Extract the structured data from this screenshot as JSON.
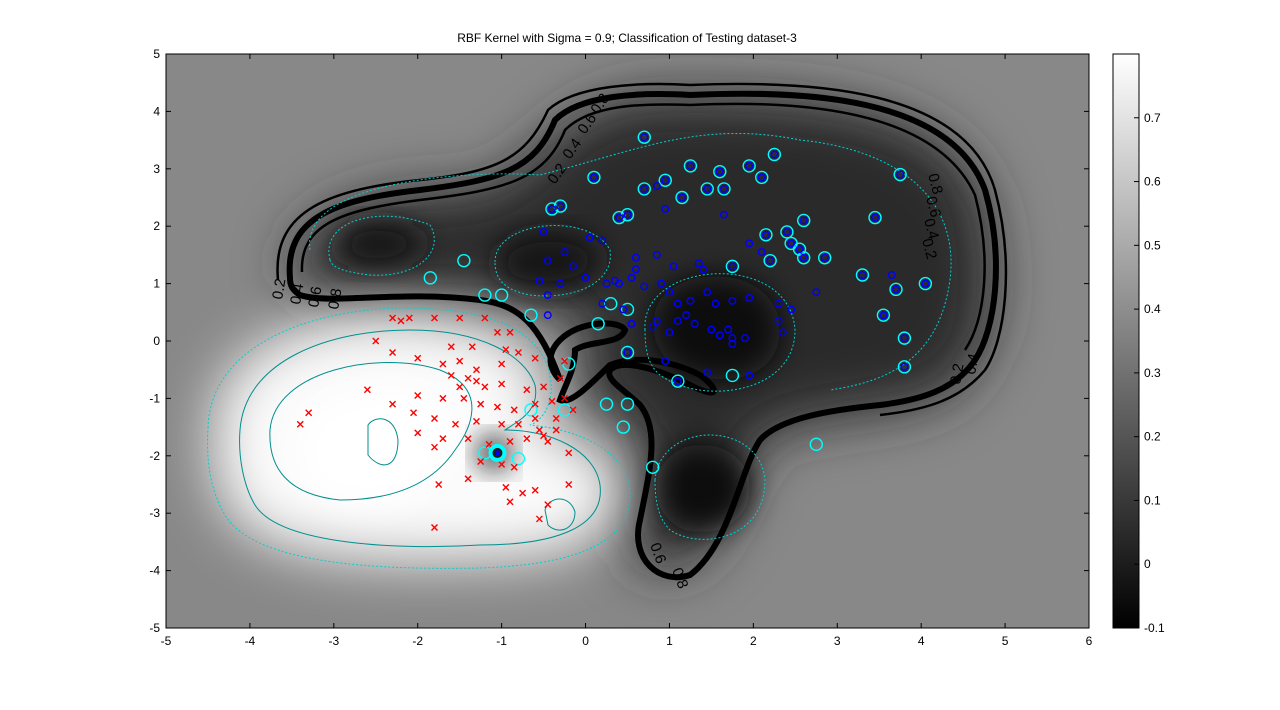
{
  "chart_data": {
    "type": "scatter",
    "title": "RBF Kernel with Sigma = 0.9; Classification of Testing dataset-3",
    "xlim": [
      -5,
      6
    ],
    "ylim": [
      -5,
      5
    ],
    "xticks": [
      "-5",
      "-4",
      "-3",
      "-2",
      "-1",
      "0",
      "1",
      "2",
      "3",
      "4",
      "5",
      "6"
    ],
    "yticks": [
      "5",
      "4",
      "3",
      "2",
      "1",
      "0",
      "-1",
      "-2",
      "-3",
      "-4",
      "-5"
    ],
    "colorbar": {
      "range": [
        -0.1,
        0.8
      ],
      "ticks": [
        "0.7",
        "0.6",
        "0.5",
        "0.4",
        "0.3",
        "0.2",
        "0.1",
        "0",
        "-0.1"
      ],
      "colormap": "gray"
    },
    "contour_labels": [
      "0.2",
      "0.4",
      "0.6",
      "0.8",
      "0.8",
      "0.6",
      "0.4",
      "0.2",
      "0.2",
      "0.4",
      "0.6",
      "0.8",
      "0.2",
      "0.4",
      "0.6",
      "0.8"
    ],
    "colors": {
      "positive_marker": "#ff0000",
      "negative_marker": "#0000ff",
      "support_vector_ring": "#00ffff",
      "boundary": "#000000",
      "contour": "#00bcbc"
    },
    "series": [
      {
        "marker": "x",
        "color": "#ff0000",
        "points": [
          [
            -2.3,
            0.4
          ],
          [
            -2.2,
            0.35
          ],
          [
            -2.1,
            0.4
          ],
          [
            -1.8,
            0.4
          ],
          [
            -1.5,
            0.4
          ],
          [
            -1.2,
            0.4
          ],
          [
            -1.05,
            0.15
          ],
          [
            -0.9,
            0.15
          ],
          [
            -0.95,
            -0.15
          ],
          [
            -2.5,
            0.0
          ],
          [
            -2.3,
            -0.2
          ],
          [
            -2.0,
            -0.3
          ],
          [
            -1.7,
            -0.4
          ],
          [
            -1.5,
            -0.35
          ],
          [
            -1.3,
            -0.5
          ],
          [
            -1.0,
            -0.4
          ],
          [
            -0.8,
            -0.2
          ],
          [
            -0.6,
            -0.3
          ],
          [
            -1.6,
            -0.6
          ],
          [
            -1.4,
            -0.65
          ],
          [
            -1.3,
            -0.7
          ],
          [
            -1.5,
            -0.8
          ],
          [
            -1.2,
            -0.8
          ],
          [
            -1.0,
            -0.75
          ],
          [
            -0.7,
            -0.85
          ],
          [
            -0.5,
            -0.8
          ],
          [
            -0.3,
            -0.65
          ],
          [
            -2.0,
            -0.95
          ],
          [
            -1.7,
            -1.0
          ],
          [
            -1.45,
            -1.0
          ],
          [
            -1.25,
            -1.1
          ],
          [
            -1.05,
            -1.15
          ],
          [
            -0.85,
            -1.2
          ],
          [
            -0.6,
            -1.1
          ],
          [
            -0.4,
            -1.05
          ],
          [
            -0.25,
            -1.0
          ],
          [
            -2.3,
            -1.1
          ],
          [
            -2.05,
            -1.25
          ],
          [
            -1.8,
            -1.35
          ],
          [
            -1.55,
            -1.45
          ],
          [
            -1.3,
            -1.4
          ],
          [
            -1.0,
            -1.45
          ],
          [
            -0.8,
            -1.45
          ],
          [
            -0.6,
            -1.35
          ],
          [
            -2.0,
            -1.6
          ],
          [
            -1.7,
            -1.7
          ],
          [
            -1.4,
            -1.7
          ],
          [
            -1.15,
            -1.8
          ],
          [
            -0.9,
            -1.75
          ],
          [
            -0.7,
            -1.7
          ],
          [
            -0.5,
            -1.65
          ],
          [
            -0.35,
            -1.55
          ],
          [
            -1.25,
            -2.1
          ],
          [
            -1.0,
            -2.15
          ],
          [
            -0.85,
            -2.2
          ],
          [
            -1.4,
            -2.4
          ],
          [
            -0.95,
            -2.55
          ],
          [
            -0.75,
            -2.65
          ],
          [
            -0.6,
            -2.6
          ],
          [
            -0.45,
            -2.85
          ],
          [
            -0.2,
            -2.5
          ],
          [
            -2.6,
            -0.85
          ],
          [
            -3.3,
            -1.25
          ],
          [
            -3.4,
            -1.45
          ],
          [
            -1.8,
            -1.85
          ],
          [
            -1.75,
            -2.5
          ],
          [
            -1.8,
            -3.25
          ],
          [
            -0.9,
            -2.8
          ],
          [
            -0.55,
            -3.1
          ],
          [
            -0.2,
            -1.95
          ],
          [
            -0.45,
            -1.75
          ],
          [
            -0.35,
            -1.35
          ],
          [
            -0.55,
            -1.55
          ],
          [
            -0.15,
            -1.2
          ],
          [
            -1.6,
            -0.1
          ],
          [
            -1.35,
            -0.1
          ],
          [
            -0.25,
            -0.35
          ]
        ]
      },
      {
        "marker": "o",
        "color": "#0000ff",
        "points": [
          [
            0.7,
            3.55
          ],
          [
            1.25,
            3.05
          ],
          [
            1.6,
            2.95
          ],
          [
            2.25,
            3.25
          ],
          [
            1.95,
            3.05
          ],
          [
            0.1,
            2.85
          ],
          [
            0.7,
            2.65
          ],
          [
            0.85,
            2.7
          ],
          [
            0.95,
            2.8
          ],
          [
            1.45,
            2.65
          ],
          [
            1.65,
            2.65
          ],
          [
            2.1,
            2.85
          ],
          [
            1.15,
            2.5
          ],
          [
            0.95,
            2.3
          ],
          [
            1.65,
            2.2
          ],
          [
            2.6,
            2.1
          ],
          [
            3.45,
            2.15
          ],
          [
            0.4,
            2.15
          ],
          [
            0.5,
            2.2
          ],
          [
            -0.4,
            2.3
          ],
          [
            -0.3,
            2.35
          ],
          [
            -0.5,
            1.9
          ],
          [
            0.05,
            1.8
          ],
          [
            0.2,
            1.75
          ],
          [
            -0.25,
            1.55
          ],
          [
            -0.45,
            1.4
          ],
          [
            0.6,
            1.45
          ],
          [
            0.85,
            1.5
          ],
          [
            1.95,
            1.7
          ],
          [
            2.15,
            1.85
          ],
          [
            2.4,
            1.9
          ],
          [
            2.45,
            1.7
          ],
          [
            2.55,
            1.6
          ],
          [
            2.85,
            1.45
          ],
          [
            2.6,
            1.45
          ],
          [
            2.1,
            1.55
          ],
          [
            1.75,
            1.3
          ],
          [
            1.4,
            1.25
          ],
          [
            1.05,
            1.3
          ],
          [
            0.6,
            1.25
          ],
          [
            0.4,
            1.0
          ],
          [
            0.0,
            1.1
          ],
          [
            -0.15,
            1.3
          ],
          [
            -0.55,
            1.05
          ],
          [
            -0.45,
            0.8
          ],
          [
            -0.3,
            1.0
          ],
          [
            0.25,
            1.0
          ],
          [
            0.35,
            1.05
          ],
          [
            0.55,
            1.1
          ],
          [
            0.9,
            1.0
          ],
          [
            1.0,
            0.85
          ],
          [
            1.25,
            0.7
          ],
          [
            1.45,
            0.85
          ],
          [
            1.55,
            0.65
          ],
          [
            1.75,
            0.7
          ],
          [
            1.95,
            0.75
          ],
          [
            2.3,
            0.65
          ],
          [
            2.75,
            0.85
          ],
          [
            3.3,
            1.15
          ],
          [
            3.65,
            1.15
          ],
          [
            4.05,
            1.0
          ],
          [
            3.7,
            0.9
          ],
          [
            3.55,
            0.45
          ],
          [
            2.45,
            0.55
          ],
          [
            2.3,
            0.35
          ],
          [
            2.35,
            0.15
          ],
          [
            1.1,
            0.65
          ],
          [
            1.2,
            0.45
          ],
          [
            1.1,
            0.35
          ],
          [
            0.85,
            0.35
          ],
          [
            0.55,
            0.3
          ],
          [
            0.2,
            0.65
          ],
          [
            0.45,
            0.55
          ],
          [
            1.3,
            0.3
          ],
          [
            1.5,
            0.2
          ],
          [
            1.7,
            0.2
          ],
          [
            1.75,
            0.05
          ],
          [
            1.75,
            -0.05
          ],
          [
            1.6,
            0.1
          ],
          [
            1.9,
            0.05
          ],
          [
            1.0,
            0.15
          ],
          [
            0.8,
            0.25
          ],
          [
            -0.45,
            0.45
          ],
          [
            0.95,
            -0.35
          ],
          [
            1.1,
            -0.7
          ],
          [
            1.45,
            -0.55
          ],
          [
            1.95,
            -0.6
          ],
          [
            3.8,
            0.05
          ],
          [
            3.8,
            -0.45
          ],
          [
            0.5,
            -0.2
          ],
          [
            3.75,
            2.9
          ],
          [
            2.2,
            1.4
          ],
          [
            1.35,
            1.35
          ],
          [
            0.7,
            0.95
          ]
        ]
      }
    ],
    "support_vectors": [
      [
        0.7,
        3.55
      ],
      [
        1.25,
        3.05
      ],
      [
        1.6,
        2.95
      ],
      [
        2.25,
        3.25
      ],
      [
        1.95,
        3.05
      ],
      [
        0.1,
        2.85
      ],
      [
        0.7,
        2.65
      ],
      [
        0.95,
        2.8
      ],
      [
        1.45,
        2.65
      ],
      [
        1.65,
        2.65
      ],
      [
        2.1,
        2.85
      ],
      [
        1.15,
        2.5
      ],
      [
        2.6,
        2.1
      ],
      [
        3.45,
        2.15
      ],
      [
        0.4,
        2.15
      ],
      [
        0.5,
        2.2
      ],
      [
        -0.4,
        2.3
      ],
      [
        -0.3,
        2.35
      ],
      [
        2.15,
        1.85
      ],
      [
        2.4,
        1.9
      ],
      [
        2.45,
        1.7
      ],
      [
        2.55,
        1.6
      ],
      [
        2.6,
        1.45
      ],
      [
        2.85,
        1.45
      ],
      [
        1.75,
        1.3
      ],
      [
        -1.45,
        1.4
      ],
      [
        -1.85,
        1.1
      ],
      [
        -1.0,
        0.8
      ],
      [
        -0.65,
        0.45
      ],
      [
        0.3,
        0.65
      ],
      [
        0.5,
        0.55
      ],
      [
        3.55,
        0.45
      ],
      [
        3.8,
        0.05
      ],
      [
        3.8,
        -0.45
      ],
      [
        2.75,
        -1.8
      ],
      [
        0.8,
        -2.2
      ],
      [
        1.1,
        -0.7
      ],
      [
        -0.25,
        -1.2
      ],
      [
        0.25,
        -1.1
      ],
      [
        0.5,
        -1.1
      ],
      [
        0.45,
        -1.5
      ],
      [
        -0.65,
        -1.2
      ],
      [
        -0.2,
        -0.4
      ],
      [
        0.15,
        0.3
      ],
      [
        0.5,
        -0.2
      ],
      [
        -1.2,
        -1.95
      ],
      [
        -0.8,
        -2.05
      ],
      [
        -1.2,
        0.8
      ],
      [
        1.75,
        -0.6
      ],
      [
        3.75,
        2.9
      ],
      [
        4.05,
        1.0
      ],
      [
        3.7,
        0.9
      ],
      [
        3.3,
        1.15
      ],
      [
        2.2,
        1.4
      ]
    ],
    "highlight": [
      -1.05,
      -1.95
    ]
  }
}
